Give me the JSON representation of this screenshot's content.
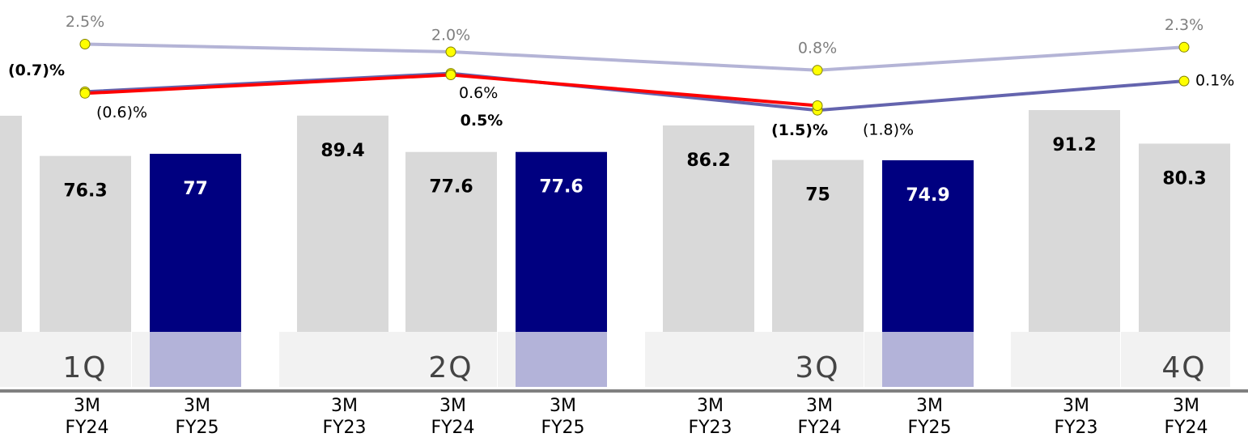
{
  "chart_data": {
    "type": "bar",
    "categories": [
      [
        "3M",
        "FY24"
      ],
      [
        "3M",
        "FY25"
      ],
      [
        "3M",
        "FY23"
      ],
      [
        "3M",
        "FY24"
      ],
      [
        "3M",
        "FY25"
      ],
      [
        "3M",
        "FY23"
      ],
      [
        "3M",
        "FY24"
      ],
      [
        "3M",
        "FY25"
      ],
      [
        "3M",
        "FY23"
      ],
      [
        "3M",
        "FY24"
      ]
    ],
    "values": [
      76.3,
      77.0,
      89.4,
      77.6,
      77.6,
      86.2,
      75.0,
      74.9,
      91.2,
      80.3
    ],
    "colors": [
      "#d9d9d9",
      "#000080",
      "#d9d9d9",
      "#d9d9d9",
      "#000080",
      "#d9d9d9",
      "#d9d9d9",
      "#000080",
      "#d9d9d9",
      "#d9d9d9"
    ],
    "ylim": [
      0,
      100
    ],
    "quarters": [
      "1Q",
      "2Q",
      "3Q",
      "4Q"
    ],
    "y2lim": [
      -2,
      3
    ],
    "lines": [
      {
        "color": "#b4b4d6",
        "values": [
          2.5,
          2.0,
          0.8,
          2.3
        ],
        "value_labels": [
          "2.5%",
          "2.0%",
          "0.8%",
          "2.3%"
        ],
        "axis": "y2"
      },
      {
        "color": "#6464ae",
        "values": [
          -0.6,
          0.6,
          -1.8,
          0.1
        ],
        "value_labels": [
          "(0.6)%",
          "0.6%",
          "(1.8)%",
          "0.1%"
        ],
        "axis": "y2"
      },
      {
        "color": "#ff0000",
        "values": [
          -0.7,
          0.5,
          -1.5
        ],
        "value_labels": [
          "(0.7)%",
          "0.5%",
          "(1.5)%"
        ],
        "axis": "y2"
      }
    ]
  }
}
